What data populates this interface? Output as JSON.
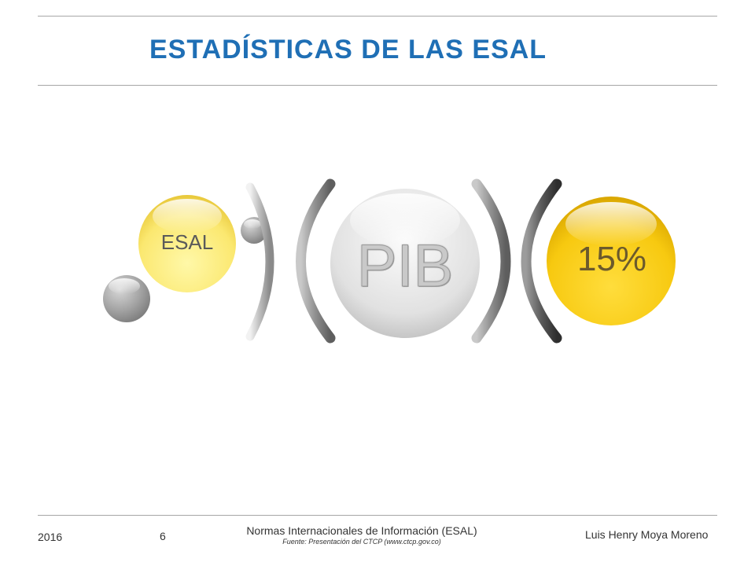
{
  "slide": {
    "title": "ESTADÍSTICAS DE LAS ESAL"
  },
  "diagram": {
    "left_circle": "ESAL",
    "center_circle": "PIB",
    "right_circle": "15%"
  },
  "footer": {
    "year": "2016",
    "page_number": "6",
    "center_text": "Normas Internacionales de Información (ESAL)",
    "source": "Fuente: Presentación del CTCP (www.ctcp.gov.co)",
    "author": "Luis Henry Moya Moreno"
  },
  "colors": {
    "title": "#1f6fb5",
    "yellow_light": "#fff07a",
    "yellow_dark": "#f2c40c",
    "gray": "#9a9a9a"
  }
}
